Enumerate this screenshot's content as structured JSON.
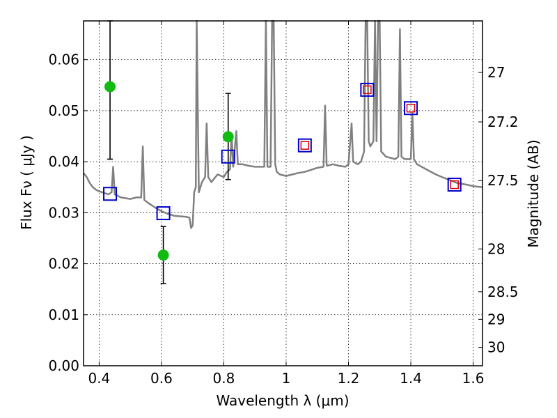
{
  "chart_data": {
    "type": "scatter",
    "x_axis": {
      "label": "Wavelength  λ (μm)",
      "range": [
        0.35,
        1.63
      ],
      "ticks": [
        0.4,
        0.6,
        0.8,
        1.0,
        1.2,
        1.4,
        1.6
      ],
      "tick_labels": [
        "0.4",
        "0.6",
        "0.8",
        "1",
        "1.2",
        "1.4",
        "1.6"
      ]
    },
    "y_axis_left": {
      "label": "Flux  Fν  ( μJy )",
      "range": [
        0.0,
        0.0676
      ],
      "ticks": [
        0.0,
        0.01,
        0.02,
        0.03,
        0.04,
        0.05,
        0.06
      ],
      "tick_labels": [
        "0.00",
        "0.01",
        "0.02",
        "0.03",
        "0.04",
        "0.05",
        "0.06"
      ]
    },
    "y_axis_right": {
      "label": "Magnitude (AB)",
      "ticks": [
        {
          "label": "27",
          "flux": 0.0575
        },
        {
          "label": "27.2",
          "flux": 0.0478
        },
        {
          "label": "27.5",
          "flux": 0.0363
        },
        {
          "label": "28",
          "flux": 0.0229
        },
        {
          "label": "28.5",
          "flux": 0.0145
        },
        {
          "label": "29",
          "flux": 0.0091
        },
        {
          "label": "30",
          "flux": 0.0036
        }
      ]
    },
    "grid": true,
    "series": [
      {
        "kind": "spectrum",
        "color": "#808080",
        "points": [
          [
            0.35,
            0.0378
          ],
          [
            0.36,
            0.037
          ],
          [
            0.37,
            0.0358
          ],
          [
            0.38,
            0.035
          ],
          [
            0.39,
            0.0345
          ],
          [
            0.4,
            0.0342
          ],
          [
            0.41,
            0.034
          ],
          [
            0.42,
            0.0338
          ],
          [
            0.43,
            0.0336
          ],
          [
            0.44,
            0.034
          ],
          [
            0.445,
            0.039
          ],
          [
            0.45,
            0.0336
          ],
          [
            0.47,
            0.033
          ],
          [
            0.5,
            0.0327
          ],
          [
            0.52,
            0.033
          ],
          [
            0.535,
            0.033
          ],
          [
            0.54,
            0.043
          ],
          [
            0.545,
            0.0325
          ],
          [
            0.56,
            0.0318
          ],
          [
            0.58,
            0.031
          ],
          [
            0.6,
            0.0303
          ],
          [
            0.62,
            0.0298
          ],
          [
            0.64,
            0.0294
          ],
          [
            0.66,
            0.0293
          ],
          [
            0.68,
            0.0292
          ],
          [
            0.69,
            0.029
          ],
          [
            0.695,
            0.027
          ],
          [
            0.7,
            0.0275
          ],
          [
            0.705,
            0.034
          ],
          [
            0.71,
            0.035
          ],
          [
            0.713,
            0.068
          ],
          [
            0.72,
            0.034
          ],
          [
            0.73,
            0.036
          ],
          [
            0.74,
            0.037
          ],
          [
            0.745,
            0.0475
          ],
          [
            0.75,
            0.037
          ],
          [
            0.76,
            0.036
          ],
          [
            0.78,
            0.0375
          ],
          [
            0.8,
            0.037
          ],
          [
            0.81,
            0.038
          ],
          [
            0.82,
            0.0385
          ],
          [
            0.825,
            0.0455
          ],
          [
            0.83,
            0.039
          ],
          [
            0.84,
            0.046
          ],
          [
            0.845,
            0.0395
          ],
          [
            0.86,
            0.0395
          ],
          [
            0.88,
            0.0392
          ],
          [
            0.9,
            0.039
          ],
          [
            0.92,
            0.039
          ],
          [
            0.93,
            0.039
          ],
          [
            0.935,
            0.068
          ],
          [
            0.94,
            0.039
          ],
          [
            0.95,
            0.039
          ],
          [
            0.955,
            0.068
          ],
          [
            0.96,
            0.068
          ],
          [
            0.965,
            0.0395
          ],
          [
            0.97,
            0.038
          ],
          [
            0.98,
            0.0375
          ],
          [
            1.0,
            0.0372
          ],
          [
            1.02,
            0.0375
          ],
          [
            1.04,
            0.0378
          ],
          [
            1.06,
            0.038
          ],
          [
            1.08,
            0.0384
          ],
          [
            1.1,
            0.0388
          ],
          [
            1.12,
            0.039
          ],
          [
            1.125,
            0.051
          ],
          [
            1.13,
            0.0392
          ],
          [
            1.15,
            0.0395
          ],
          [
            1.17,
            0.0392
          ],
          [
            1.19,
            0.039
          ],
          [
            1.2,
            0.0395
          ],
          [
            1.21,
            0.0475
          ],
          [
            1.215,
            0.04
          ],
          [
            1.23,
            0.0395
          ],
          [
            1.24,
            0.04
          ],
          [
            1.25,
            0.042
          ],
          [
            1.255,
            0.068
          ],
          [
            1.26,
            0.068
          ],
          [
            1.265,
            0.044
          ],
          [
            1.27,
            0.043
          ],
          [
            1.28,
            0.044
          ],
          [
            1.285,
            0.068
          ],
          [
            1.29,
            0.044
          ],
          [
            1.295,
            0.068
          ],
          [
            1.3,
            0.068
          ],
          [
            1.305,
            0.042
          ],
          [
            1.32,
            0.041
          ],
          [
            1.35,
            0.0405
          ],
          [
            1.36,
            0.041
          ],
          [
            1.365,
            0.066
          ],
          [
            1.37,
            0.041
          ],
          [
            1.38,
            0.0405
          ],
          [
            1.4,
            0.0405
          ],
          [
            1.405,
            0.0495
          ],
          [
            1.41,
            0.0405
          ],
          [
            1.42,
            0.0395
          ],
          [
            1.45,
            0.0385
          ],
          [
            1.48,
            0.0375
          ],
          [
            1.5,
            0.037
          ],
          [
            1.52,
            0.0365
          ],
          [
            1.55,
            0.0358
          ],
          [
            1.58,
            0.0355
          ],
          [
            1.6,
            0.0352
          ],
          [
            1.63,
            0.035
          ]
        ]
      },
      {
        "kind": "observed",
        "color": "#11bb11",
        "points": [
          {
            "x": 0.435,
            "y": 0.0547,
            "err_low": 0.0405,
            "err_high": 0.0676
          },
          {
            "x": 0.606,
            "y": 0.0217,
            "err_low": 0.0161,
            "err_high": 0.0273
          },
          {
            "x": 0.814,
            "y": 0.0449,
            "err_low": 0.0365,
            "err_high": 0.0534
          }
        ]
      },
      {
        "kind": "model-blue",
        "color": "#0000cc",
        "points": [
          [
            0.435,
            0.0337
          ],
          [
            0.606,
            0.0299
          ],
          [
            0.814,
            0.041
          ],
          [
            1.06,
            0.0432
          ],
          [
            1.26,
            0.0541
          ],
          [
            1.4,
            0.0505
          ],
          [
            1.54,
            0.0355
          ]
        ]
      },
      {
        "kind": "model-red",
        "color": "#dd0000",
        "points": [
          [
            1.06,
            0.0432
          ],
          [
            1.26,
            0.0541
          ],
          [
            1.4,
            0.0505
          ],
          [
            1.54,
            0.0355
          ]
        ]
      }
    ]
  }
}
